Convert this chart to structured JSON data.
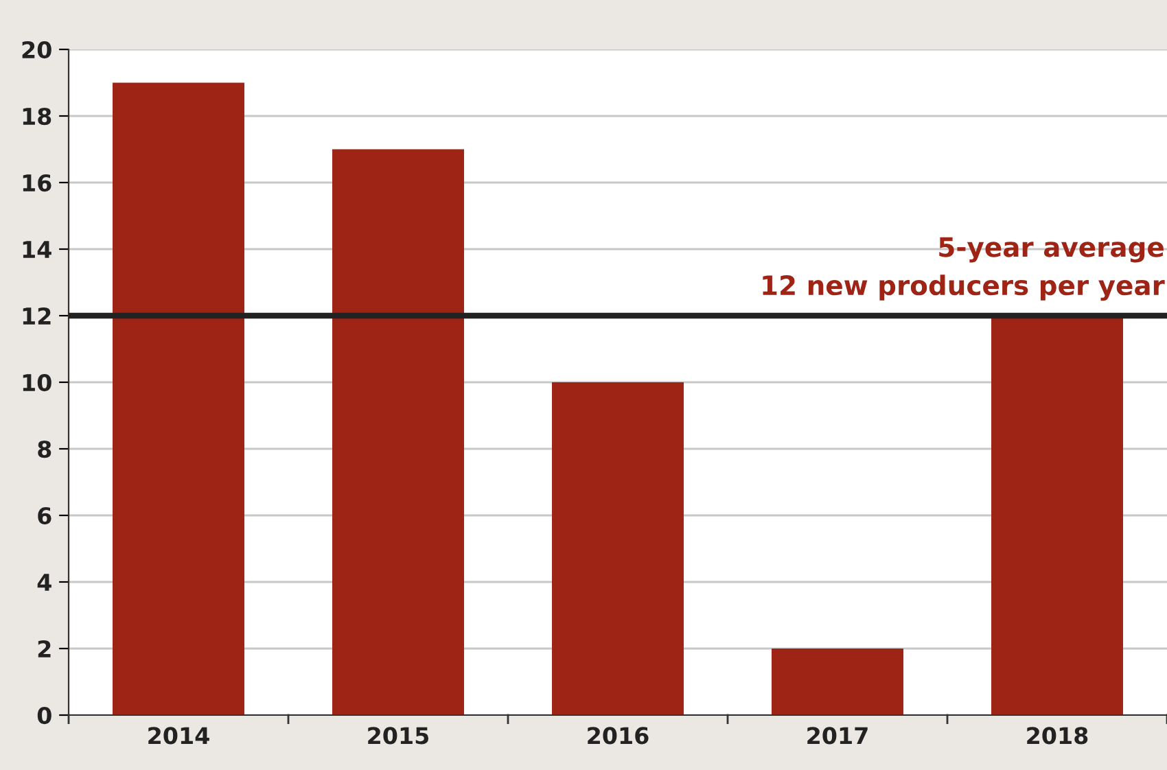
{
  "chart_data": {
    "type": "bar",
    "categories": [
      "2014",
      "2015",
      "2016",
      "2017",
      "2018"
    ],
    "values": [
      19,
      17,
      10,
      2,
      12
    ],
    "color": "#9e2416",
    "ylim": [
      0,
      20
    ],
    "yticks": [
      0,
      2,
      4,
      6,
      8,
      10,
      12,
      14,
      16,
      18,
      20
    ],
    "grid": "y",
    "ref_lines": [
      {
        "axis": "y",
        "value": 12,
        "label": "5-year average\n12 new producers per year",
        "color": "#222222",
        "line_style": "solid"
      }
    ]
  }
}
